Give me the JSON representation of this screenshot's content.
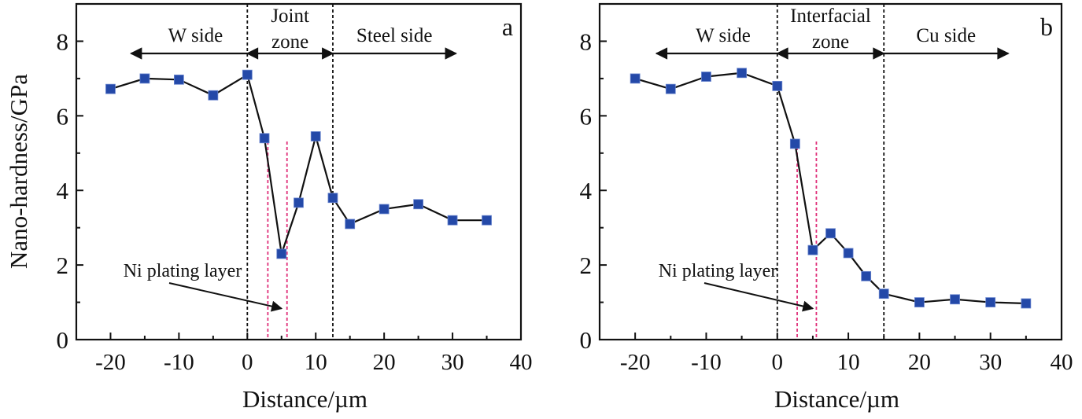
{
  "figure": {
    "ylabel": "Nano-hardness/GPa",
    "xlabel": "Distance/µm"
  },
  "chart_data": [
    {
      "type": "line",
      "panel_label": "a",
      "title": "",
      "xlabel": "Distance/µm",
      "ylabel": "Nano-hardness/GPa",
      "xlim": [
        -25,
        40
      ],
      "ylim": [
        0,
        9
      ],
      "xticks": [
        -20,
        -10,
        0,
        10,
        20,
        30,
        40
      ],
      "yticks": [
        0,
        2,
        4,
        6,
        8
      ],
      "grid": false,
      "marker_color": "#2449a8",
      "series": [
        {
          "name": "Nano-hardness",
          "x": [
            -20,
            -15,
            -10,
            -5,
            0,
            2.5,
            5,
            7.5,
            10,
            12.5,
            15,
            20,
            25,
            30,
            35
          ],
          "y": [
            6.72,
            7.0,
            6.97,
            6.55,
            7.1,
            5.4,
            2.3,
            3.67,
            5.45,
            3.8,
            3.1,
            3.5,
            3.63,
            3.2,
            3.2
          ]
        }
      ],
      "boundaries": [
        {
          "x": 0,
          "style": "black-dashed"
        },
        {
          "x": 12.5,
          "style": "black-dashed"
        },
        {
          "x": 3,
          "style": "pink-dashed"
        },
        {
          "x": 5.8,
          "style": "pink-dashed"
        }
      ],
      "regions": [
        {
          "label": "W side",
          "from": -17,
          "to": 0
        },
        {
          "label_line1": "Joint",
          "label_line2": "zone",
          "from": 0,
          "to": 12.5
        },
        {
          "label": "Steel side",
          "from": 12.5,
          "to": 30.5
        }
      ],
      "annotation": {
        "text": "Ni plating layer",
        "arrow_to_x": 5,
        "arrow_to_y": 0.75
      }
    },
    {
      "type": "line",
      "panel_label": "b",
      "title": "",
      "xlabel": "Distance/µm",
      "ylabel": "",
      "xlim": [
        -25,
        40
      ],
      "ylim": [
        0,
        9
      ],
      "xticks": [
        -20,
        -10,
        0,
        10,
        20,
        30,
        40
      ],
      "yticks": [
        0,
        2,
        4,
        6,
        8
      ],
      "grid": false,
      "marker_color": "#2449a8",
      "series": [
        {
          "name": "Nano-hardness",
          "x": [
            -20,
            -15,
            -10,
            -5,
            0,
            2.5,
            5,
            7.5,
            10,
            12.5,
            15,
            20,
            25,
            30,
            35
          ],
          "y": [
            7.0,
            6.72,
            7.05,
            7.15,
            6.8,
            5.25,
            2.4,
            2.85,
            2.32,
            1.7,
            1.23,
            1.0,
            1.08,
            1.0,
            0.97
          ]
        }
      ],
      "boundaries": [
        {
          "x": 0,
          "style": "black-dashed"
        },
        {
          "x": 15,
          "style": "black-dashed"
        },
        {
          "x": 2.8,
          "style": "pink-dashed"
        },
        {
          "x": 5.5,
          "style": "pink-dashed"
        }
      ],
      "regions": [
        {
          "label": "W side",
          "from": -17,
          "to": 0
        },
        {
          "label_line1": "Interfacial",
          "label_line2": "zone",
          "from": 0,
          "to": 15
        },
        {
          "label": "Cu side",
          "from": 15,
          "to": 32.5
        }
      ],
      "annotation": {
        "text": "Ni plating layer",
        "arrow_to_x": 5,
        "arrow_to_y": 0.75
      }
    }
  ]
}
